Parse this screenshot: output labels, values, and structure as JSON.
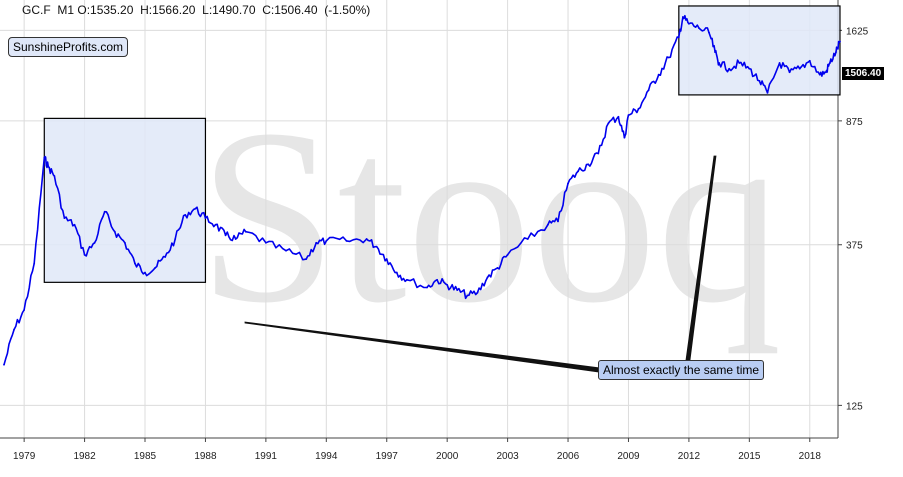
{
  "header": {
    "symbol": "GC.F",
    "interval": "M1",
    "open": "O:1535.20",
    "high": "H:1566.20",
    "low": "L:1490.70",
    "close": "C:1506.40",
    "change": "(-1.50%)"
  },
  "brand": "SunshineProfits.com",
  "watermark": "Stooq",
  "annotation": "Almost exactly the same time",
  "last_price_label": "1506.40",
  "colors": {
    "series": "#0000ee",
    "box_fill": "#dfe7f8",
    "annotation_fill": "#b9cdf3",
    "grid": "#dcdcdc",
    "watermark": "#e6e6e6"
  },
  "chart_data": {
    "type": "line",
    "title": "",
    "xlabel": "",
    "ylabel": "",
    "y_scale": "log",
    "ylim": [
      100,
      2000
    ],
    "y_ticks": [
      125,
      375,
      875,
      1625
    ],
    "x_ticks": [
      "1979",
      "1982",
      "1985",
      "1988",
      "1991",
      "1994",
      "1997",
      "2000",
      "2003",
      "2006",
      "2009",
      "2012",
      "2015",
      "2018"
    ],
    "grid": true,
    "highlight_boxes": [
      {
        "from": "1980.0",
        "to": "1988.0",
        "low": 290,
        "high": 890
      },
      {
        "from": "2011.5",
        "to": "2019.5",
        "low": 1045,
        "high": 1920
      }
    ],
    "series": [
      {
        "x": [
          "1978.0",
          "1978.5",
          "1979.0",
          "1979.5",
          "1980.0",
          "1980.2",
          "1980.5",
          "1981.0",
          "1981.5",
          "1982.0",
          "1982.5",
          "1983.0",
          "1983.5",
          "1984.0",
          "1984.5",
          "1985.0",
          "1985.5",
          "1986.0",
          "1986.5",
          "1987.0",
          "1987.5",
          "1988.0",
          "1988.5",
          "1989.0",
          "1989.5",
          "1990.0",
          "1991.0",
          "1992.0",
          "1993.0",
          "1993.5",
          "1994.0",
          "1995.0",
          "1996.0",
          "1996.5",
          "1997.0",
          "1997.5",
          "1998.0",
          "1999.0",
          "1999.5",
          "2000.0",
          "2000.5",
          "2001.0",
          "2001.5",
          "2002.0",
          "2002.5",
          "2003.0",
          "2004.0",
          "2005.0",
          "2005.5",
          "2006.0",
          "2006.5",
          "2007.0",
          "2007.5",
          "2008.0",
          "2008.5",
          "2008.8",
          "2009.0",
          "2009.5",
          "2010.0",
          "2010.5",
          "2011.0",
          "2011.5",
          "2011.7",
          "2012.0",
          "2012.5",
          "2013.0",
          "2013.3",
          "2013.5",
          "2014.0",
          "2014.5",
          "2015.0",
          "2015.5",
          "2015.9",
          "2016.5",
          "2017.0",
          "2017.5",
          "2018.0",
          "2018.5",
          "2018.8",
          "2019.0",
          "2019.3",
          "2019.5"
        ],
        "y": [
          165,
          210,
          240,
          330,
          680,
          640,
          600,
          450,
          430,
          350,
          380,
          470,
          410,
          380,
          330,
          310,
          320,
          345,
          390,
          460,
          480,
          450,
          430,
          400,
          390,
          410,
          380,
          360,
          340,
          380,
          385,
          385,
          390,
          370,
          340,
          310,
          295,
          280,
          295,
          285,
          275,
          265,
          270,
          300,
          320,
          350,
          390,
          430,
          440,
          570,
          620,
          650,
          700,
          860,
          900,
          780,
          910,
          950,
          1080,
          1200,
          1350,
          1550,
          1780,
          1700,
          1650,
          1600,
          1400,
          1300,
          1250,
          1300,
          1250,
          1150,
          1060,
          1300,
          1220,
          1250,
          1320,
          1200,
          1220,
          1300,
          1400,
          1506
        ]
      }
    ]
  }
}
